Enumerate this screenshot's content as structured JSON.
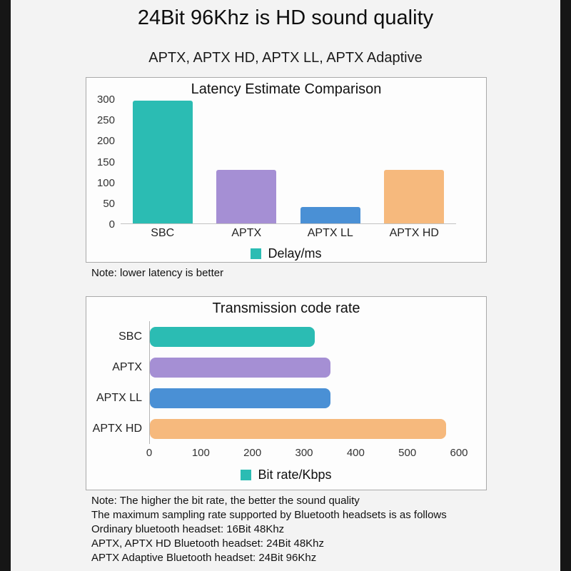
{
  "header": {
    "title": "24Bit 96Khz is HD sound quality",
    "subtitle": "APTX, APTX HD, APTX LL, APTX Adaptive"
  },
  "notes": {
    "latency_note": "Note: lower latency is better",
    "bitrate_note": "Note: The higher the bit rate, the better the sound quality",
    "sampling_intro": "The maximum sampling rate supported by Bluetooth headsets is as follows",
    "sampling_lines": [
      "Ordinary bluetooth headset: 16Bit 48Khz",
      "APTX, APTX HD Bluetooth headset: 24Bit 48Khz",
      "APTX Adaptive Bluetooth headset: 24Bit 96Khz"
    ]
  },
  "colors": {
    "teal": "#2bbcb3",
    "purple": "#a58fd4",
    "blue": "#4a90d5",
    "orange": "#f6b97d",
    "background": "#f3f3f3",
    "side_bars": "#161616"
  },
  "chart_data": [
    {
      "type": "bar",
      "orientation": "vertical",
      "title": "Latency Estimate Comparison",
      "categories": [
        "SBC",
        "APTX",
        "APTX LL",
        "APTX HD"
      ],
      "values": [
        295,
        128,
        40,
        128
      ],
      "bar_colors": [
        "#2bbcb3",
        "#a58fd4",
        "#4a90d5",
        "#f6b97d"
      ],
      "legend": "Delay/ms",
      "legend_color": "#2bbcb3",
      "legend_position": "bottom",
      "ylabel": "",
      "xlabel": "",
      "ylim": [
        0,
        300
      ],
      "yticks": [
        0,
        50,
        100,
        150,
        200,
        250,
        300
      ],
      "grid": false
    },
    {
      "type": "bar",
      "orientation": "horizontal",
      "title": "Transmission code rate",
      "categories": [
        "SBC",
        "APTX",
        "APTX LL",
        "APTX HD"
      ],
      "values": [
        320,
        350,
        350,
        575
      ],
      "bar_colors": [
        "#2bbcb3",
        "#a58fd4",
        "#4a90d5",
        "#f6b97d"
      ],
      "legend": "Bit rate/Kbps",
      "legend_color": "#2bbcb3",
      "legend_position": "bottom",
      "ylabel": "",
      "xlabel": "",
      "xlim": [
        0,
        600
      ],
      "xticks": [
        0,
        100,
        200,
        300,
        400,
        500,
        600
      ],
      "grid": false
    }
  ]
}
